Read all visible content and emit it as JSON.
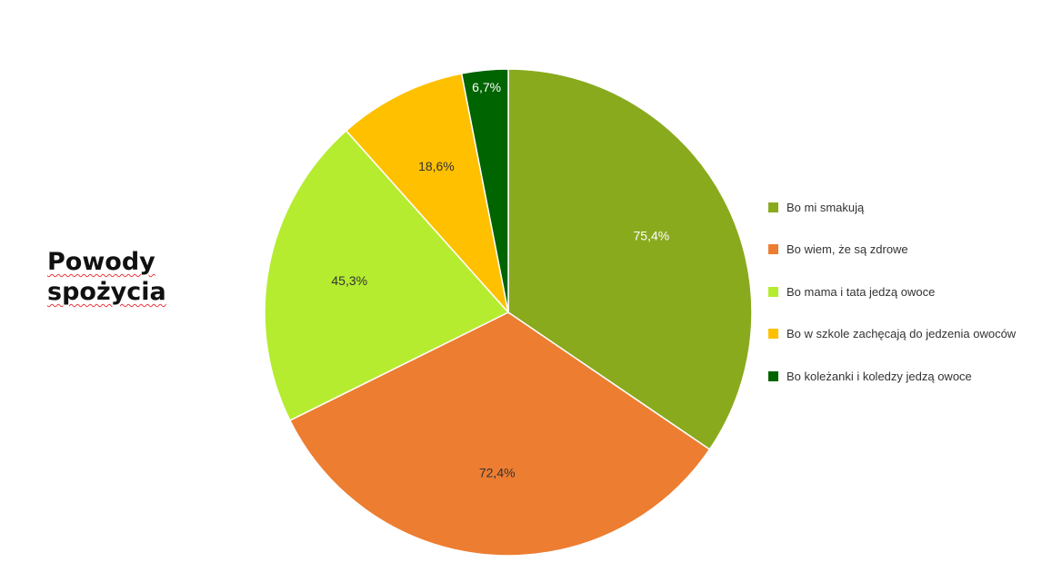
{
  "title": {
    "line1": "Powody",
    "line2": "spożycia"
  },
  "chart_data": {
    "type": "pie",
    "title": "Powody spożycia",
    "start_angle_deg": 0,
    "direction": "clockwise",
    "legend_position": "right",
    "slices": [
      {
        "label": "Bo mi smakują",
        "value": 75.4,
        "display": "75,4%",
        "color": "#8aaa1e",
        "label_color": "#ffffff"
      },
      {
        "label": "Bo wiem, że są zdrowe",
        "value": 72.4,
        "display": "72,4%",
        "color": "#ed7d31",
        "label_color": "#333333"
      },
      {
        "label": "Bo mama i tata jedzą owoce",
        "value": 45.3,
        "display": "45,3%",
        "color": "#b5ec30",
        "label_color": "#333333"
      },
      {
        "label": "Bo w szkole zachęcają do jedzenia owoców",
        "value": 18.6,
        "display": "18,6%",
        "color": "#ffc000",
        "label_color": "#333333"
      },
      {
        "label": "Bo koleżanki i koledzy jedzą owoce",
        "value": 6.7,
        "display": "6,7%",
        "color": "#006400",
        "label_color": "#ffffff"
      }
    ]
  }
}
